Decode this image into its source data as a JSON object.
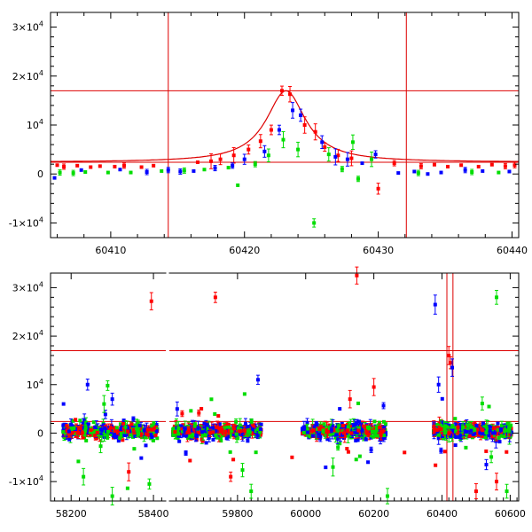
{
  "chart_data": [
    {
      "type": "scatter",
      "panel": "top",
      "xlim": [
        60405.5,
        60440.5
      ],
      "ylim": [
        -13000,
        33000
      ],
      "x_ticks": [
        60410,
        60420,
        60430,
        60440
      ],
      "y_ticks": [
        {
          "value": 30000,
          "label": "3×10",
          "exp": "4"
        },
        {
          "value": 20000,
          "label": "2×10",
          "exp": "4"
        },
        {
          "value": 10000,
          "label": "10",
          "exp": "4"
        },
        {
          "value": 0,
          "label": "0",
          "exp": ""
        },
        {
          "value": -10000,
          "label": "-1×10",
          "exp": "4"
        }
      ],
      "vlines": [
        60414.3,
        60432.1
      ],
      "hlines": [
        17000,
        2400
      ],
      "model_curve": {
        "peak_x": 60423.1,
        "baseline": 2400,
        "amplitude": 14600,
        "width": 1.8
      },
      "series": [
        {
          "color": "#ff0000",
          "points": [
            [
              60406,
              1800
            ],
            [
              60406.5,
              1500
            ],
            [
              60407.5,
              1700
            ],
            [
              60408.5,
              1400
            ],
            [
              60409.2,
              1600
            ],
            [
              60410.3,
              1500
            ],
            [
              60411,
              1700
            ],
            [
              60412.3,
              1400
            ],
            [
              60413.2,
              1700
            ],
            [
              60416.5,
              2400
            ],
            [
              60417.5,
              2600
            ],
            [
              60418.2,
              3000
            ],
            [
              60419.2,
              3800
            ],
            [
              60420.3,
              5000
            ],
            [
              60421.2,
              6700
            ],
            [
              60422,
              9000
            ],
            [
              60422.8,
              17000
            ],
            [
              60423.4,
              16300
            ],
            [
              60424.5,
              10000
            ],
            [
              60425.3,
              8600
            ],
            [
              60426,
              5500
            ],
            [
              60427,
              3800
            ],
            [
              60428,
              3200
            ],
            [
              60430,
              -3000
            ],
            [
              60431.2,
              2200
            ],
            [
              60433.2,
              1600
            ],
            [
              60434.2,
              1900
            ],
            [
              60435.2,
              1500
            ],
            [
              60436.2,
              1800
            ],
            [
              60437.5,
              1500
            ],
            [
              60438.5,
              1900
            ],
            [
              60439.5,
              1600
            ],
            [
              60440.2,
              1800
            ]
          ]
        },
        {
          "color": "#00dd00",
          "points": [
            [
              60406.2,
              300
            ],
            [
              60407.2,
              200
            ],
            [
              60408.1,
              400
            ],
            [
              60409.8,
              300
            ],
            [
              60411.5,
              300
            ],
            [
              60413.8,
              600
            ],
            [
              60415.5,
              700
            ],
            [
              60417,
              900
            ],
            [
              60418.8,
              1300
            ],
            [
              60419.5,
              -2300
            ],
            [
              60420.8,
              2000
            ],
            [
              60421.8,
              3800
            ],
            [
              60422.9,
              7000
            ],
            [
              60424,
              5000
            ],
            [
              60425.2,
              -10000
            ],
            [
              60426.3,
              4000
            ],
            [
              60427.3,
              1000
            ],
            [
              60428.1,
              6500
            ],
            [
              60428.5,
              -1000
            ],
            [
              60429.5,
              3000
            ],
            [
              60433,
              200
            ],
            [
              60437,
              400
            ],
            [
              60439,
              300
            ]
          ]
        },
        {
          "color": "#0000ff",
          "points": [
            [
              60405.8,
              -800
            ],
            [
              60407.8,
              800
            ],
            [
              60410.7,
              900
            ],
            [
              60412.7,
              400
            ],
            [
              60414.3,
              800
            ],
            [
              60415.2,
              500
            ],
            [
              60416.2,
              600
            ],
            [
              60417.8,
              1200
            ],
            [
              60419.1,
              1700
            ],
            [
              60420,
              3000
            ],
            [
              60421.5,
              4600
            ],
            [
              60422.6,
              9000
            ],
            [
              60423.6,
              13000
            ],
            [
              60424.2,
              12000
            ],
            [
              60425.8,
              6500
            ],
            [
              60426.8,
              3500
            ],
            [
              60427.7,
              3000
            ],
            [
              60428.8,
              2200
            ],
            [
              60429.8,
              4000
            ],
            [
              60431.5,
              200
            ],
            [
              60432.7,
              500
            ],
            [
              60433.7,
              0
            ],
            [
              60434.7,
              300
            ],
            [
              60436.5,
              800
            ],
            [
              60437.8,
              600
            ],
            [
              60439.8,
              500
            ]
          ]
        }
      ]
    },
    {
      "type": "scatter",
      "panel": "bottom",
      "xlim": [
        58150,
        60625
      ],
      "ylim": [
        -14000,
        33000
      ],
      "x_ticks": [
        58200,
        58400,
        59800,
        60000,
        60200,
        60400,
        60600
      ],
      "y_ticks": [
        {
          "value": 30000,
          "label": "3×10",
          "exp": "4"
        },
        {
          "value": 20000,
          "label": "2×10",
          "exp": "4"
        },
        {
          "value": 10000,
          "label": "10",
          "exp": "4"
        },
        {
          "value": 0,
          "label": "0",
          "exp": ""
        },
        {
          "value": -10000,
          "label": "-1×10",
          "exp": "4"
        }
      ],
      "vlines": [
        60414.3,
        60432.1
      ],
      "hlines": [
        17000,
        2400
      ],
      "seasons": [
        [
          58180,
          58410
        ],
        [
          59610,
          59870
        ],
        [
          59990,
          60235
        ],
        [
          60375,
          60605
        ]
      ],
      "outliers": {
        "red": [
          [
            58395,
            27200
          ],
          [
            59735,
            28000
          ],
          [
            60150,
            32500
          ],
          [
            60130,
            7000
          ],
          [
            60200,
            9500
          ],
          [
            59960,
            -5000
          ],
          [
            59780,
            -9000
          ],
          [
            60290,
            -4000
          ],
          [
            60560,
            -10000
          ],
          [
            60500,
            -12000
          ],
          [
            58340,
            -8000
          ],
          [
            60420,
            16000
          ],
          [
            60425,
            14500
          ]
        ],
        "green": [
          [
            58230,
            -9000
          ],
          [
            58300,
            -13000
          ],
          [
            58390,
            -10500
          ],
          [
            59840,
            -12000
          ],
          [
            60560,
            28000
          ],
          [
            60240,
            -13000
          ],
          [
            60590,
            -12000
          ],
          [
            60080,
            -7000
          ],
          [
            58280,
            6000
          ],
          [
            60470,
            -3000
          ]
        ],
        "blue": [
          [
            58240,
            10000
          ],
          [
            60380,
            26500
          ],
          [
            60430,
            13500
          ],
          [
            60530,
            -6500
          ],
          [
            59860,
            11000
          ],
          [
            60390,
            10000
          ],
          [
            58300,
            7000
          ],
          [
            60100,
            5000
          ]
        ]
      }
    }
  ]
}
